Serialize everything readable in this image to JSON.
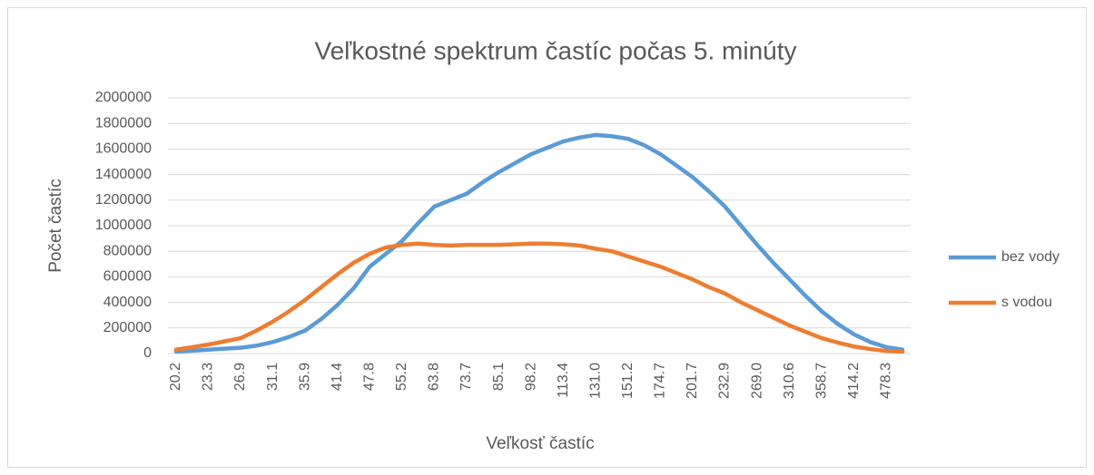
{
  "chart_data": {
    "type": "line",
    "title": "Veľkostné spektrum častíc počas 5. minúty",
    "x_label": "Veľkosť častíc",
    "y_label": "Počet častíc",
    "categories": [
      "20.2",
      null,
      "23.3",
      null,
      "26.9",
      null,
      "31.1",
      null,
      "35.9",
      null,
      "41.4",
      null,
      "47.8",
      null,
      "55.2",
      null,
      "63.8",
      null,
      "73.7",
      null,
      "85.1",
      null,
      "98.2",
      null,
      "113.4",
      null,
      "131.0",
      null,
      "151.2",
      null,
      "174.7",
      null,
      "201.7",
      null,
      "232.9",
      null,
      "269.0",
      null,
      "310.6",
      null,
      "358.7",
      null,
      "414.2",
      null,
      "478.3",
      null
    ],
    "series": [
      {
        "name": "bez vody",
        "color": "#5b9bd5",
        "values": [
          15000,
          22000,
          30000,
          38000,
          45000,
          62000,
          90000,
          130000,
          180000,
          270000,
          380000,
          510000,
          680000,
          780000,
          880000,
          1020000,
          1150000,
          1200000,
          1250000,
          1340000,
          1420000,
          1490000,
          1560000,
          1610000,
          1660000,
          1690000,
          1710000,
          1700000,
          1680000,
          1630000,
          1560000,
          1470000,
          1380000,
          1270000,
          1150000,
          1000000,
          850000,
          710000,
          580000,
          450000,
          330000,
          230000,
          150000,
          90000,
          50000,
          30000
        ]
      },
      {
        "name": "s vodou",
        "color": "#ed7d31",
        "values": [
          30000,
          50000,
          70000,
          95000,
          120000,
          180000,
          250000,
          330000,
          420000,
          520000,
          620000,
          710000,
          780000,
          830000,
          850000,
          860000,
          850000,
          845000,
          850000,
          850000,
          850000,
          855000,
          860000,
          860000,
          855000,
          845000,
          820000,
          800000,
          760000,
          720000,
          680000,
          630000,
          580000,
          520000,
          470000,
          400000,
          340000,
          280000,
          220000,
          170000,
          120000,
          85000,
          55000,
          35000,
          20000,
          15000
        ]
      }
    ],
    "ylim": [
      0,
      2000000
    ],
    "yticks": [
      0,
      200000,
      400000,
      600000,
      800000,
      1000000,
      1200000,
      1400000,
      1600000,
      1800000,
      2000000
    ],
    "grid": true,
    "legend": "right"
  }
}
